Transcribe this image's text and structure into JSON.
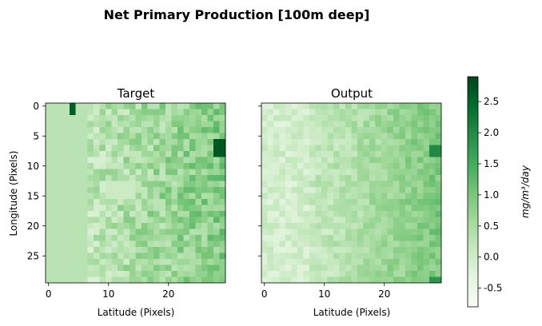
{
  "chart_data": {
    "type": "heatmap",
    "title": "Net Primary Production [100m deep]",
    "grid_size": 30,
    "colormap": "Greens",
    "colorbar": {
      "label": "mg/m³/day",
      "vmin": -0.8,
      "vmax": 2.9,
      "ticks": [
        "-0.5",
        "0.0",
        "0.5",
        "1.0",
        "1.5",
        "2.0",
        "2.5"
      ],
      "tick_values": [
        -0.5,
        0.0,
        0.5,
        1.0,
        1.5,
        2.0,
        2.5
      ]
    },
    "panels": [
      {
        "title": "Target",
        "xlabel": "Latitude (Pixels)",
        "ylabel": "Longitude (Pixels)",
        "xticks": [
          "0",
          "10",
          "20"
        ],
        "yticks": [
          "0",
          "5",
          "10",
          "15",
          "20",
          "25"
        ],
        "tick_values_x": [
          0,
          10,
          20
        ],
        "tick_values_y": [
          0,
          5,
          10,
          15,
          20,
          25
        ]
      },
      {
        "title": "Output",
        "xlabel": "Latitude (Pixels)",
        "ylabel": "",
        "xticks": [
          "0",
          "10",
          "20"
        ],
        "yticks": [],
        "tick_values_x": [
          0,
          10,
          20
        ],
        "tick_values_y": []
      }
    ]
  }
}
